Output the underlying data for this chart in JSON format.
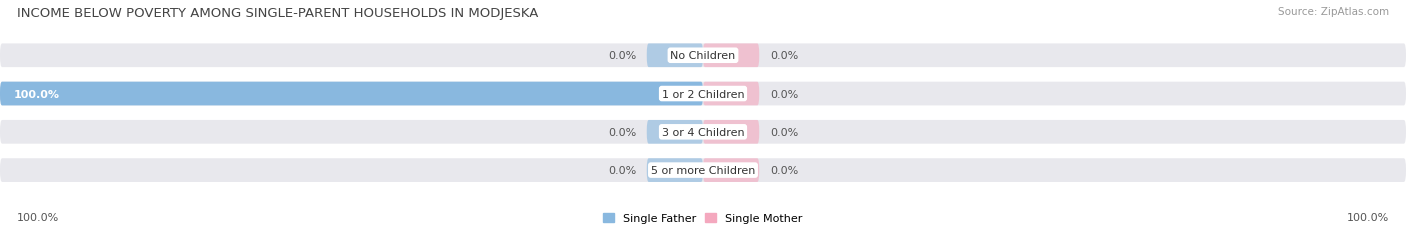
{
  "title": "INCOME BELOW POVERTY AMONG SINGLE-PARENT HOUSEHOLDS IN MODJESKA",
  "source": "Source: ZipAtlas.com",
  "categories": [
    "No Children",
    "1 or 2 Children",
    "3 or 4 Children",
    "5 or more Children"
  ],
  "father_values": [
    0.0,
    100.0,
    0.0,
    0.0
  ],
  "mother_values": [
    0.0,
    0.0,
    0.0,
    0.0
  ],
  "father_color": "#89b8df",
  "mother_color": "#f4a8be",
  "row_bg_color": "#e8e8ed",
  "fig_bg_color": "#ffffff",
  "xlim_left": -100,
  "xlim_right": 100,
  "stub_size": 8,
  "bar_height": 0.62,
  "title_fontsize": 9.5,
  "label_fontsize": 8,
  "cat_fontsize": 8,
  "source_fontsize": 7.5,
  "legend_fontsize": 8,
  "value_color": "#555555",
  "cat_color": "#333333",
  "bottom_label": "100.0%",
  "row_gap_color": "#ffffff"
}
